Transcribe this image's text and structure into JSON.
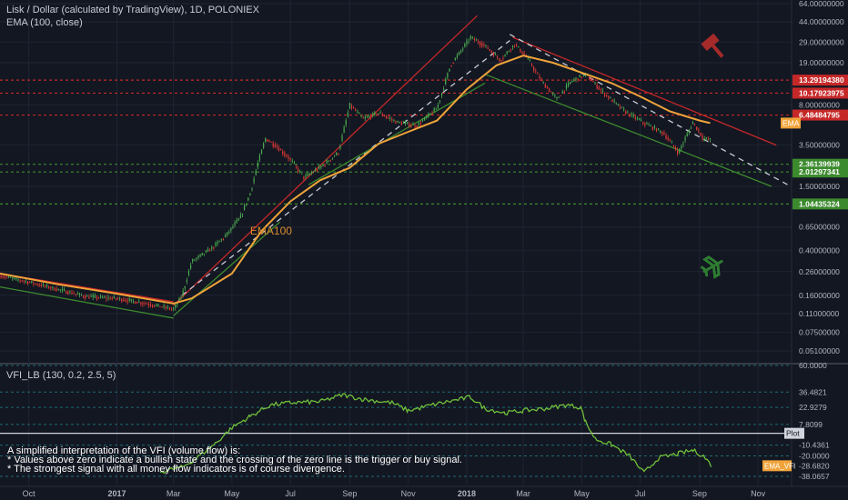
{
  "header": {
    "title": "Lisk / Dollar (calculated by TradingView), 1D, POLONIEX",
    "indicator": "EMA (100, close)"
  },
  "lower_pane": {
    "title": "VFI_LB (130, 0.2, 2.5, 5)",
    "notes": [
      "A simplified interpretation of the VFI (volume flow) is:",
      "* Values above zero indicate a bullish state and the crossing of the zero line is the trigger or buy signal.",
      "* The strongest signal with all money flow indicators is of course divergence."
    ]
  },
  "colors": {
    "background": "#131722",
    "grid": "#1f2433",
    "candle_up": "#4caf50",
    "candle_down": "#e53935",
    "ema": "#f0a43a",
    "vfi": "#6fbf3a",
    "resistance_line": "#c62828",
    "support_line": "#3c8a2e",
    "trend_dashed": "#c8ccd6",
    "sell_marker": "#a52a2a",
    "buy_marker": "#2e7d32"
  },
  "icons": {
    "sell": "gavel-icon",
    "buy": "airplane-icon"
  },
  "chart_data": [
    {
      "type": "line",
      "title": "Lisk / Dollar (calculated by TradingView), 1D, POLONIEX",
      "y_scale": "log",
      "y_ticks": [
        64.0,
        44.0,
        29.0,
        19.0,
        8.0,
        3.5,
        1.5,
        0.65,
        0.4,
        0.26,
        0.16,
        0.11,
        0.075,
        0.051
      ],
      "y_tick_labels": [
        "64.00000000",
        "44.00000000",
        "29.00000000",
        "19.00000000",
        "8.00000000",
        "3.50000000",
        "1.50000000",
        "0.65000000",
        "0.40000000",
        "0.26000000",
        "0.16000000",
        "0.11000000",
        "0.07500000",
        "0.05100000"
      ],
      "x_tick_labels": [
        "Oct",
        "2017",
        "Mar",
        "May",
        "Jul",
        "Sep",
        "Nov",
        "2018",
        "Mar",
        "May",
        "Jul",
        "Sep",
        "Nov"
      ],
      "x_tick_dates": [
        "2016-10-01",
        "2017-01-01",
        "2017-03-01",
        "2017-05-01",
        "2017-07-01",
        "2017-09-01",
        "2017-11-01",
        "2018-01-01",
        "2018-03-01",
        "2018-05-01",
        "2018-07-01",
        "2018-09-01",
        "2018-11-01"
      ],
      "price_levels": [
        {
          "value": 13.2919438,
          "label": "13.29194380",
          "color": "#c62828"
        },
        {
          "value": 10.17923975,
          "label": "10.17923975",
          "color": "#c62828"
        },
        {
          "value": 6.48484795,
          "label": "6.48484795",
          "color": "#c62828"
        },
        {
          "value": 2.36139939,
          "label": "2.36139939",
          "color": "#3c8a2e"
        },
        {
          "value": 2.01297341,
          "label": "2.01297341",
          "color": "#3c8a2e"
        },
        {
          "value": 1.04435324,
          "label": "1.04435324",
          "color": "#3c8a2e"
        }
      ],
      "ema_tag": "EMA",
      "ema_annotation": "EMA100",
      "series": [
        {
          "name": "Lisk / Dollar",
          "points": [
            [
              "2016-09-01",
              0.24
            ],
            [
              "2016-10-01",
              0.21
            ],
            [
              "2016-11-01",
              0.18
            ],
            [
              "2016-12-01",
              0.155
            ],
            [
              "2017-01-01",
              0.15
            ],
            [
              "2017-02-01",
              0.135
            ],
            [
              "2017-03-01",
              0.12
            ],
            [
              "2017-03-10",
              0.16
            ],
            [
              "2017-03-20",
              0.32
            ],
            [
              "2017-04-10",
              0.42
            ],
            [
              "2017-04-25",
              0.55
            ],
            [
              "2017-05-10",
              0.8
            ],
            [
              "2017-05-20",
              1.3
            ],
            [
              "2017-05-28",
              2.4
            ],
            [
              "2017-06-05",
              4.0
            ],
            [
              "2017-06-15",
              3.5
            ],
            [
              "2017-07-01",
              2.6
            ],
            [
              "2017-07-15",
              1.8
            ],
            [
              "2017-08-01",
              2.2
            ],
            [
              "2017-08-20",
              3.0
            ],
            [
              "2017-09-01",
              8.0
            ],
            [
              "2017-09-15",
              6.0
            ],
            [
              "2017-10-01",
              6.8
            ],
            [
              "2017-10-20",
              5.6
            ],
            [
              "2017-11-10",
              5.2
            ],
            [
              "2017-12-01",
              7.5
            ],
            [
              "2017-12-15",
              18.0
            ],
            [
              "2018-01-05",
              32.0
            ],
            [
              "2018-01-20",
              27.0
            ],
            [
              "2018-02-05",
              20.0
            ],
            [
              "2018-02-20",
              28.0
            ],
            [
              "2018-03-05",
              21.0
            ],
            [
              "2018-03-20",
              13.0
            ],
            [
              "2018-04-05",
              9.0
            ],
            [
              "2018-04-20",
              13.0
            ],
            [
              "2018-05-05",
              15.0
            ],
            [
              "2018-05-25",
              10.0
            ],
            [
              "2018-06-15",
              7.0
            ],
            [
              "2018-07-05",
              5.5
            ],
            [
              "2018-07-25",
              4.5
            ],
            [
              "2018-08-10",
              3.0
            ],
            [
              "2018-08-25",
              5.6
            ],
            [
              "2018-09-05",
              4.0
            ],
            [
              "2018-09-12",
              3.9
            ]
          ]
        },
        {
          "name": "EMA",
          "points": [
            [
              "2016-09-01",
              0.25
            ],
            [
              "2016-11-01",
              0.2
            ],
            [
              "2017-01-01",
              0.165
            ],
            [
              "2017-03-01",
              0.135
            ],
            [
              "2017-03-20",
              0.15
            ],
            [
              "2017-05-01",
              0.25
            ],
            [
              "2017-06-01",
              0.6
            ],
            [
              "2017-07-01",
              1.1
            ],
            [
              "2017-08-01",
              1.7
            ],
            [
              "2017-09-01",
              2.2
            ],
            [
              "2017-10-01",
              3.6
            ],
            [
              "2017-11-01",
              4.6
            ],
            [
              "2017-12-01",
              5.8
            ],
            [
              "2018-01-01",
              11.0
            ],
            [
              "2018-02-01",
              18.0
            ],
            [
              "2018-03-01",
              22.0
            ],
            [
              "2018-04-01",
              19.0
            ],
            [
              "2018-05-01",
              15.5
            ],
            [
              "2018-06-01",
              12.5
            ],
            [
              "2018-07-01",
              9.5
            ],
            [
              "2018-08-01",
              7.0
            ],
            [
              "2018-09-01",
              5.8
            ],
            [
              "2018-09-12",
              5.5
            ]
          ]
        }
      ]
    },
    {
      "type": "line",
      "title": "VFI_LB (130, 0.2, 2.5, 5)",
      "y_tick_labels": [
        "60.0000",
        "36.4821",
        "22.9279",
        "7.8099",
        "-10.4361",
        "-20.0000",
        "-38.0657"
      ],
      "y_ticks": [
        60.0,
        36.4821,
        22.9279,
        7.8099,
        -10.4361,
        -20.0,
        -38.0657
      ],
      "value_tags": [
        {
          "label": "Plot",
          "value": 0
        },
        {
          "label": "EMA_VFI",
          "value": -28.682,
          "value_label": "-28.6820"
        }
      ],
      "series": [
        {
          "name": "VFI",
          "points": [
            [
              "2017-02-15",
              -34.0
            ],
            [
              "2017-03-10",
              -30.0
            ],
            [
              "2017-03-25",
              -22.0
            ],
            [
              "2017-04-15",
              -8.0
            ],
            [
              "2017-05-01",
              5.0
            ],
            [
              "2017-05-20",
              15.0
            ],
            [
              "2017-06-10",
              25.0
            ],
            [
              "2017-07-01",
              27.0
            ],
            [
              "2017-08-01",
              28.0
            ],
            [
              "2017-08-25",
              34.0
            ],
            [
              "2017-09-15",
              30.0
            ],
            [
              "2017-10-15",
              27.0
            ],
            [
              "2017-11-01",
              20.0
            ],
            [
              "2017-12-01",
              26.0
            ],
            [
              "2018-01-05",
              32.0
            ],
            [
              "2018-01-20",
              22.0
            ],
            [
              "2018-02-10",
              18.0
            ],
            [
              "2018-03-01",
              20.0
            ],
            [
              "2018-03-25",
              22.0
            ],
            [
              "2018-04-15",
              25.0
            ],
            [
              "2018-04-30",
              23.0
            ],
            [
              "2018-05-05",
              10.0
            ],
            [
              "2018-05-15",
              -5.0
            ],
            [
              "2018-06-01",
              -10.0
            ],
            [
              "2018-06-20",
              -20.0
            ],
            [
              "2018-07-05",
              -35.0
            ],
            [
              "2018-07-20",
              -22.0
            ],
            [
              "2018-08-10",
              -18.0
            ],
            [
              "2018-08-25",
              -15.0
            ],
            [
              "2018-09-05",
              -20.0
            ],
            [
              "2018-09-15",
              -30.0
            ]
          ]
        }
      ]
    }
  ]
}
